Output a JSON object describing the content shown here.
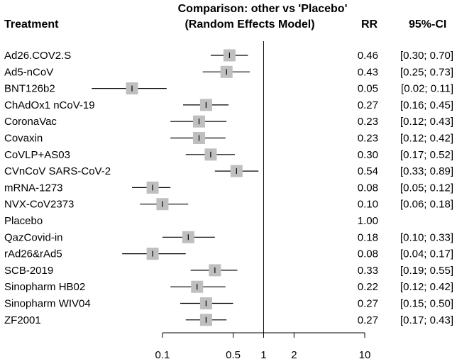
{
  "chart_data": {
    "type": "forest",
    "title_line1": "Comparison: other vs 'Placebo'",
    "title_line2": "(Random Effects Model)",
    "col_treatment": "Treatment",
    "col_rr": "RR",
    "col_ci": "95%-CI",
    "reference_value": 1,
    "x_scale": "log",
    "xlim": [
      0.05,
      10
    ],
    "x_ticks": [
      {
        "value": 0.1,
        "label": "0.1"
      },
      {
        "value": 0.5,
        "label": "0.5"
      },
      {
        "value": 1,
        "label": "1"
      },
      {
        "value": 2,
        "label": "2"
      },
      {
        "value": 10,
        "label": "10"
      }
    ],
    "rows": [
      {
        "name": "Ad26.COV2.S",
        "rr": 0.46,
        "lo": 0.3,
        "hi": 0.7,
        "rr_text": "0.46",
        "ci_text": "[0.30; 0.70]"
      },
      {
        "name": "Ad5-nCoV",
        "rr": 0.43,
        "lo": 0.25,
        "hi": 0.73,
        "rr_text": "0.43",
        "ci_text": "[0.25; 0.73]"
      },
      {
        "name": "BNT126b2",
        "rr": 0.05,
        "lo": 0.02,
        "hi": 0.11,
        "rr_text": "0.05",
        "ci_text": "[0.02; 0.11]"
      },
      {
        "name": "ChAdOx1 nCoV-19",
        "rr": 0.27,
        "lo": 0.16,
        "hi": 0.45,
        "rr_text": "0.27",
        "ci_text": "[0.16; 0.45]"
      },
      {
        "name": "CoronaVac",
        "rr": 0.23,
        "lo": 0.12,
        "hi": 0.43,
        "rr_text": "0.23",
        "ci_text": "[0.12; 0.43]"
      },
      {
        "name": "Covaxin",
        "rr": 0.23,
        "lo": 0.12,
        "hi": 0.42,
        "rr_text": "0.23",
        "ci_text": "[0.12; 0.42]"
      },
      {
        "name": "CoVLP+AS03",
        "rr": 0.3,
        "lo": 0.17,
        "hi": 0.52,
        "rr_text": "0.30",
        "ci_text": "[0.17; 0.52]"
      },
      {
        "name": "CVnCoV SARS-CoV-2",
        "rr": 0.54,
        "lo": 0.33,
        "hi": 0.89,
        "rr_text": "0.54",
        "ci_text": "[0.33; 0.89]"
      },
      {
        "name": "mRNA-1273",
        "rr": 0.08,
        "lo": 0.05,
        "hi": 0.12,
        "rr_text": "0.08",
        "ci_text": "[0.05; 0.12]"
      },
      {
        "name": "NVX-CoV2373",
        "rr": 0.1,
        "lo": 0.06,
        "hi": 0.18,
        "rr_text": "0.10",
        "ci_text": "[0.06; 0.18]"
      },
      {
        "name": "Placebo",
        "rr": null,
        "lo": null,
        "hi": null,
        "rr_text": "1.00",
        "ci_text": ""
      },
      {
        "name": "QazCovid-in",
        "rr": 0.18,
        "lo": 0.1,
        "hi": 0.33,
        "rr_text": "0.18",
        "ci_text": "[0.10; 0.33]"
      },
      {
        "name": "rAd26&rAd5",
        "rr": 0.08,
        "lo": 0.04,
        "hi": 0.17,
        "rr_text": "0.08",
        "ci_text": "[0.04; 0.17]"
      },
      {
        "name": "SCB-2019",
        "rr": 0.33,
        "lo": 0.19,
        "hi": 0.55,
        "rr_text": "0.33",
        "ci_text": "[0.19; 0.55]"
      },
      {
        "name": "Sinopharm HB02",
        "rr": 0.22,
        "lo": 0.12,
        "hi": 0.42,
        "rr_text": "0.22",
        "ci_text": "[0.12; 0.42]"
      },
      {
        "name": "Sinopharm WIV04",
        "rr": 0.27,
        "lo": 0.15,
        "hi": 0.5,
        "rr_text": "0.27",
        "ci_text": "[0.15; 0.50]"
      },
      {
        "name": "ZF2001",
        "rr": 0.27,
        "lo": 0.17,
        "hi": 0.43,
        "rr_text": "0.27",
        "ci_text": "[0.17; 0.43]"
      }
    ],
    "colors": {
      "box": "#bfbfbf",
      "line": "#000000"
    }
  }
}
